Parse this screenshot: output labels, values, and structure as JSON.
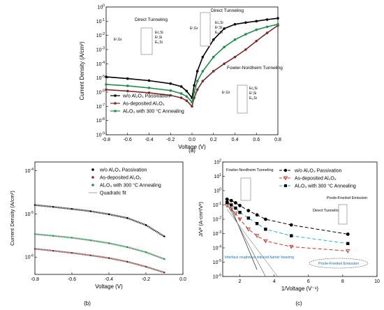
{
  "figure": {
    "panel_labels": [
      "(a)",
      "(b)",
      "(c)"
    ]
  },
  "chart_data": [
    {
      "panel": "(a)",
      "type": "line",
      "xlabel": "Voltage  (V)",
      "ylabel": "Current Density (A/cm²)",
      "xlim": [
        -0.8,
        0.8
      ],
      "ylog": true,
      "ylim_exp": [
        -9,
        0
      ],
      "x_ticks": [
        "-0.8",
        "-0.6",
        "-0.4",
        "-0.2",
        "0.0",
        "0.2",
        "0.4",
        "0.6",
        "0.8"
      ],
      "legend": {
        "position": "bottom-left",
        "entries": [
          "w/o Al₂O₃ Passivation",
          "As-deposited Al₂O₃",
          "Al₂O₃ with 300 °C Annealing"
        ]
      },
      "series": [
        {
          "name": "w/o Al₂O₃ Passivation",
          "color": "#000000",
          "marker": "dot",
          "x": [
            -0.8,
            -0.6,
            -0.4,
            -0.2,
            -0.1,
            -0.05,
            0.0,
            0.02,
            0.05,
            0.1,
            0.2,
            0.3,
            0.4,
            0.5,
            0.6,
            0.7,
            0.8
          ],
          "y": [
            1.2e-05,
            9e-06,
            6.5e-06,
            4e-06,
            2.5e-06,
            1.2e-06,
            4e-07,
            3e-06,
            3e-05,
            0.0003,
            0.005,
            0.03,
            0.06,
            0.08,
            0.1,
            0.13,
            0.16
          ]
        },
        {
          "name": "As-deposited Al₂O₃",
          "color": "#7a2a2a",
          "marker": "dot",
          "x": [
            -0.8,
            -0.6,
            -0.4,
            -0.2,
            -0.1,
            -0.05,
            0.0,
            0.02,
            0.05,
            0.1,
            0.2,
            0.3,
            0.4,
            0.5,
            0.6,
            0.7,
            0.8
          ],
          "y": [
            1.5e-06,
            1.2e-06,
            9e-07,
            6e-07,
            4e-07,
            2.5e-07,
            1e-07,
            4e-07,
            1.5e-06,
            6e-06,
            3e-05,
            0.0001,
            0.0003,
            0.001,
            0.004,
            0.015,
            0.05
          ]
        },
        {
          "name": "Al₂O₃ with 300 °C Annealing",
          "color": "#1f8f4a",
          "marker": "dot",
          "x": [
            -0.8,
            -0.6,
            -0.4,
            -0.2,
            -0.1,
            -0.05,
            0.0,
            0.02,
            0.05,
            0.1,
            0.2,
            0.3,
            0.4,
            0.5,
            0.6,
            0.7,
            0.8
          ],
          "y": [
            3.5e-06,
            2.8e-06,
            2e-06,
            1.3e-06,
            8e-07,
            5e-07,
            2e-07,
            1e-06,
            6e-06,
            3e-05,
            0.0003,
            0.0015,
            0.005,
            0.012,
            0.025,
            0.04,
            0.06
          ]
        }
      ],
      "annotations": [
        "Direct Tunneling",
        "Direct Tunneling",
        "Fowler-Nordheim Tunneling",
        "Eᶠ,Gr",
        "Eᴄ,Si",
        "Eᶠ,Si",
        "Eᵥ,Si"
      ]
    },
    {
      "panel": "(b)",
      "type": "line",
      "xlabel": "Voltage  (V)",
      "ylabel": "Current Density (A/cm²)",
      "xlim": [
        -0.8,
        0.0
      ],
      "ylog": true,
      "ylim_exp": [
        -6.4,
        -3.8
      ],
      "x_ticks": [
        "-0.8",
        "-0.6",
        "-0.4",
        "-0.2",
        "0.0"
      ],
      "legend": {
        "position": "top-right",
        "entries": [
          "w/o Al₂O₃ Passivation",
          "As-deposited Al₂O₃",
          "Al₂O₃ with 300 °C Annealing",
          "Quadratic fit"
        ]
      },
      "series": [
        {
          "name": "w/o Al₂O₃ Passivation",
          "color": "#000000",
          "x": [
            -0.8,
            -0.7,
            -0.6,
            -0.5,
            -0.4,
            -0.3,
            -0.2,
            -0.1
          ],
          "y": [
            1.6e-05,
            1.45e-05,
            1.3e-05,
            1.15e-05,
            9.8e-06,
            8e-06,
            5.5e-06,
            3e-06
          ]
        },
        {
          "name": "As-deposited Al₂O₃",
          "color": "#7a2a2a",
          "x": [
            -0.8,
            -0.7,
            -0.6,
            -0.5,
            -0.4,
            -0.3,
            -0.2,
            -0.1
          ],
          "y": [
            1.55e-06,
            1.4e-06,
            1.25e-06,
            1.1e-06,
            9.5e-07,
            7.8e-07,
            6e-07,
            4.4e-07
          ]
        },
        {
          "name": "Al₂O₃ with 300 °C Annealing",
          "color": "#1f8f4a",
          "x": [
            -0.8,
            -0.7,
            -0.6,
            -0.5,
            -0.4,
            -0.3,
            -0.2,
            -0.1
          ],
          "y": [
            3.4e-06,
            3.1e-06,
            2.8e-06,
            2.45e-06,
            2.1e-06,
            1.7e-06,
            1.3e-06,
            9e-07
          ]
        }
      ]
    },
    {
      "panel": "(c)",
      "type": "line",
      "xlabel": "1/Voltage  (V⁻¹)",
      "ylabel": "J/V² (A-cm²/V²)",
      "xlim": [
        1,
        10
      ],
      "ylog": true,
      "ylim_exp": [
        -6,
        2
      ],
      "x_ticks": [
        "2",
        "4",
        "6",
        "8",
        "10"
      ],
      "legend": {
        "position": "top-right",
        "entries": [
          "w/o Al₂O₃ Passivation",
          "As-deposited Al₂O₃",
          "Al₂O₃ with 300 °C Annealing"
        ]
      },
      "series": [
        {
          "name": "w/o Al₂O₃ Passivation",
          "color": "#000000",
          "marker": "circle",
          "x": [
            1.25,
            1.5,
            1.75,
            2.0,
            2.5,
            3.0,
            3.5,
            5.0,
            8.3
          ],
          "y": [
            0.25,
            0.2,
            0.14,
            0.09,
            0.04,
            0.02,
            0.01,
            0.004,
            0.0009
          ]
        },
        {
          "name": "As-deposited Al₂O₃",
          "color": "#c0392b",
          "marker": "triangle",
          "x": [
            1.25,
            1.5,
            1.75,
            2.0,
            2.5,
            3.0,
            3.5,
            5.0,
            8.3
          ],
          "y": [
            0.09,
            0.05,
            0.025,
            0.01,
            0.002,
            0.0007,
            0.0003,
            0.00012,
            6e-05
          ]
        },
        {
          "name": "Al₂O₃ with 300 °C Annealing",
          "color": "#000000",
          "marker": "square",
          "x": [
            1.25,
            1.5,
            1.75,
            2.0,
            2.5,
            3.0,
            3.5,
            5.0,
            8.3
          ],
          "y": [
            0.15,
            0.1,
            0.06,
            0.03,
            0.012,
            0.005,
            0.002,
            0.0007,
            0.0002
          ]
        }
      ],
      "annotations": [
        "Fowler-Nordheim Tunneling",
        "Direct Tunneling",
        "Poole-Frenkel Emission",
        "Interface roughness induced barrier lowering",
        "Poole-Frenkel Emission"
      ]
    }
  ]
}
